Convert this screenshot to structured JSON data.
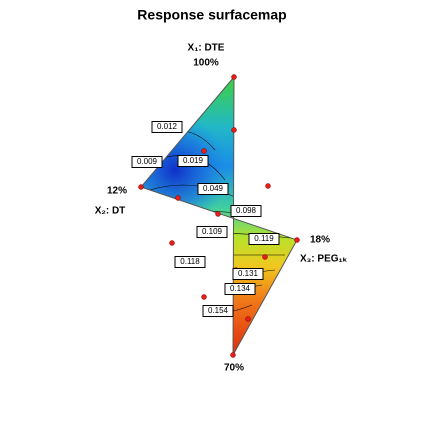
{
  "chart_data": {
    "type": "contour",
    "title": "Response surfacemap",
    "vertices": [
      {
        "name": "X₁: DTE",
        "amount": "100%"
      },
      {
        "name": "X₂: DT",
        "amount": "12%"
      },
      {
        "name": "X₃: PEG₁ₖ",
        "amount": "18%"
      },
      {
        "amount": "70%"
      }
    ],
    "levels": [
      0.012,
      0.009,
      0.019,
      0.049,
      0.098,
      0.109,
      0.119,
      0.118,
      0.131,
      0.134,
      0.154
    ]
  }
}
